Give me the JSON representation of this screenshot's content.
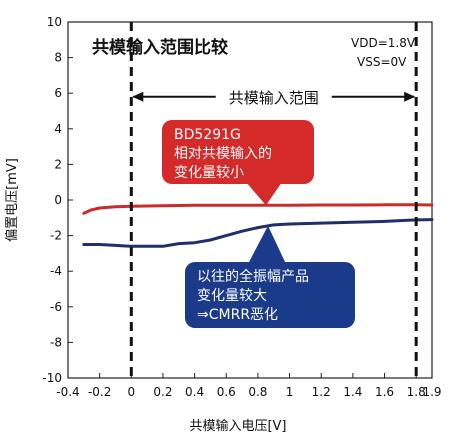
{
  "chart_data": {
    "type": "line",
    "title": "共模输入范围比较",
    "xlabel": "共模输入电压[V]",
    "ylabel": "偏置电压[mV]",
    "xlim": [
      -0.4,
      1.9
    ],
    "ylim": [
      -10,
      10
    ],
    "xticks": [
      -0.4,
      -0.2,
      0,
      0.2,
      0.4,
      0.6,
      0.8,
      1,
      1.2,
      1.4,
      1.6,
      1.8,
      1.9
    ],
    "xtick_labels": [
      "-0.4",
      "-0.2",
      "0",
      "0.2",
      "0.4",
      "0.6",
      "0.8",
      "1",
      "1.2",
      "1.4",
      "1.6",
      "1.8",
      "1.9"
    ],
    "yticks": [
      -10,
      -8,
      -6,
      -4,
      -2,
      0,
      2,
      4,
      6,
      8,
      10
    ],
    "ytick_labels": [
      "-10",
      "-8",
      "-6",
      "-4",
      "-2",
      "0",
      "2",
      "4",
      "6",
      "8",
      "10"
    ],
    "grid": false,
    "conditions": [
      "VDD=1.8V",
      "VSS=0V"
    ],
    "range_marker": {
      "x_start": 0,
      "x_end": 1.8,
      "y": 5.8,
      "label": "共模输入范围"
    },
    "series": [
      {
        "name": "BD5291G",
        "color": "#cc2b2b",
        "x": [
          -0.3,
          -0.25,
          -0.2,
          -0.1,
          0,
          0.2,
          0.4,
          0.6,
          0.8,
          1.0,
          1.2,
          1.4,
          1.6,
          1.8,
          1.9
        ],
        "y": [
          -0.75,
          -0.55,
          -0.45,
          -0.38,
          -0.35,
          -0.32,
          -0.3,
          -0.3,
          -0.3,
          -0.3,
          -0.28,
          -0.28,
          -0.27,
          -0.27,
          -0.28
        ]
      },
      {
        "name": "以往的全振幅产品",
        "color": "#1f2f6e",
        "x": [
          -0.3,
          -0.2,
          -0.1,
          0,
          0.1,
          0.2,
          0.3,
          0.4,
          0.5,
          0.6,
          0.7,
          0.8,
          0.9,
          1.0,
          1.2,
          1.4,
          1.6,
          1.8,
          1.9
        ],
        "y": [
          -2.5,
          -2.5,
          -2.55,
          -2.6,
          -2.6,
          -2.6,
          -2.45,
          -2.4,
          -2.25,
          -2.0,
          -1.75,
          -1.55,
          -1.4,
          -1.35,
          -1.3,
          -1.25,
          -1.2,
          -1.12,
          -1.1
        ]
      }
    ],
    "annotations": [
      {
        "lines": [
          "BD5291G",
          "相对共模输入的",
          "变化量较小"
        ],
        "fill": "#d42a2a",
        "text_color": "#ffffff",
        "points_to_series": "BD5291G"
      },
      {
        "lines": [
          "以往的全振幅产品",
          "变化量较大",
          "⇒CMRR恶化"
        ],
        "fill": "#1b3a8a",
        "text_color": "#ffffff",
        "points_to_series": "以往的全振幅产品"
      }
    ]
  }
}
